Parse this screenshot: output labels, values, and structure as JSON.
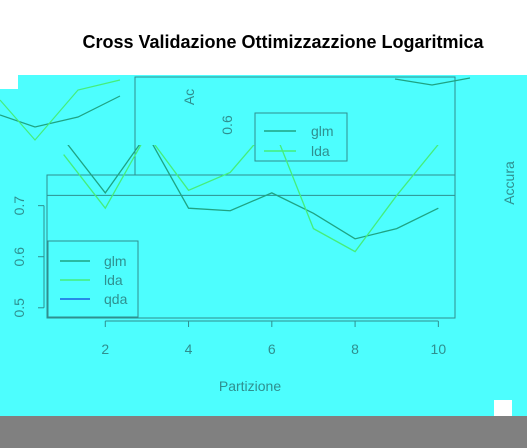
{
  "chart_data": {
    "type": "line",
    "title": "Cross Validazione Ottimizzazzione Logaritmica",
    "xlabel": "Partizione",
    "ylabel": "Accura",
    "ylabel_top": "Ac",
    "x": [
      1,
      2,
      3,
      4,
      5,
      6,
      7,
      8,
      9,
      10
    ],
    "xticks": [
      "2",
      "4",
      "6",
      "8",
      "10"
    ],
    "yticks": [
      "0.5",
      "0.6",
      "0.7"
    ],
    "ytick_top": "0.6",
    "xlim": [
      0.6,
      10.4
    ],
    "ylim": [
      0.48,
      0.76
    ],
    "reference_line": 0.72,
    "grid": false,
    "legend_position": "bottom-left",
    "series": [
      {
        "name": "glm",
        "color": "#1fa383",
        "values": [
          0.83,
          0.725,
          0.84,
          0.695,
          0.69,
          0.725,
          0.685,
          0.635,
          0.655,
          0.695
        ]
      },
      {
        "name": "lda",
        "color": "#45ee7a",
        "values": [
          0.8,
          0.695,
          0.84,
          0.73,
          0.765,
          0.86,
          0.655,
          0.61,
          0.72,
          0.82
        ]
      },
      {
        "name": "qda",
        "color": "#1a63e0",
        "values": [
          null,
          null,
          null,
          null,
          null,
          null,
          null,
          null,
          null,
          null
        ]
      }
    ]
  },
  "colors": {
    "background": "#4dfefe",
    "axis": "#2f8f8f",
    "footer": "#808080"
  }
}
